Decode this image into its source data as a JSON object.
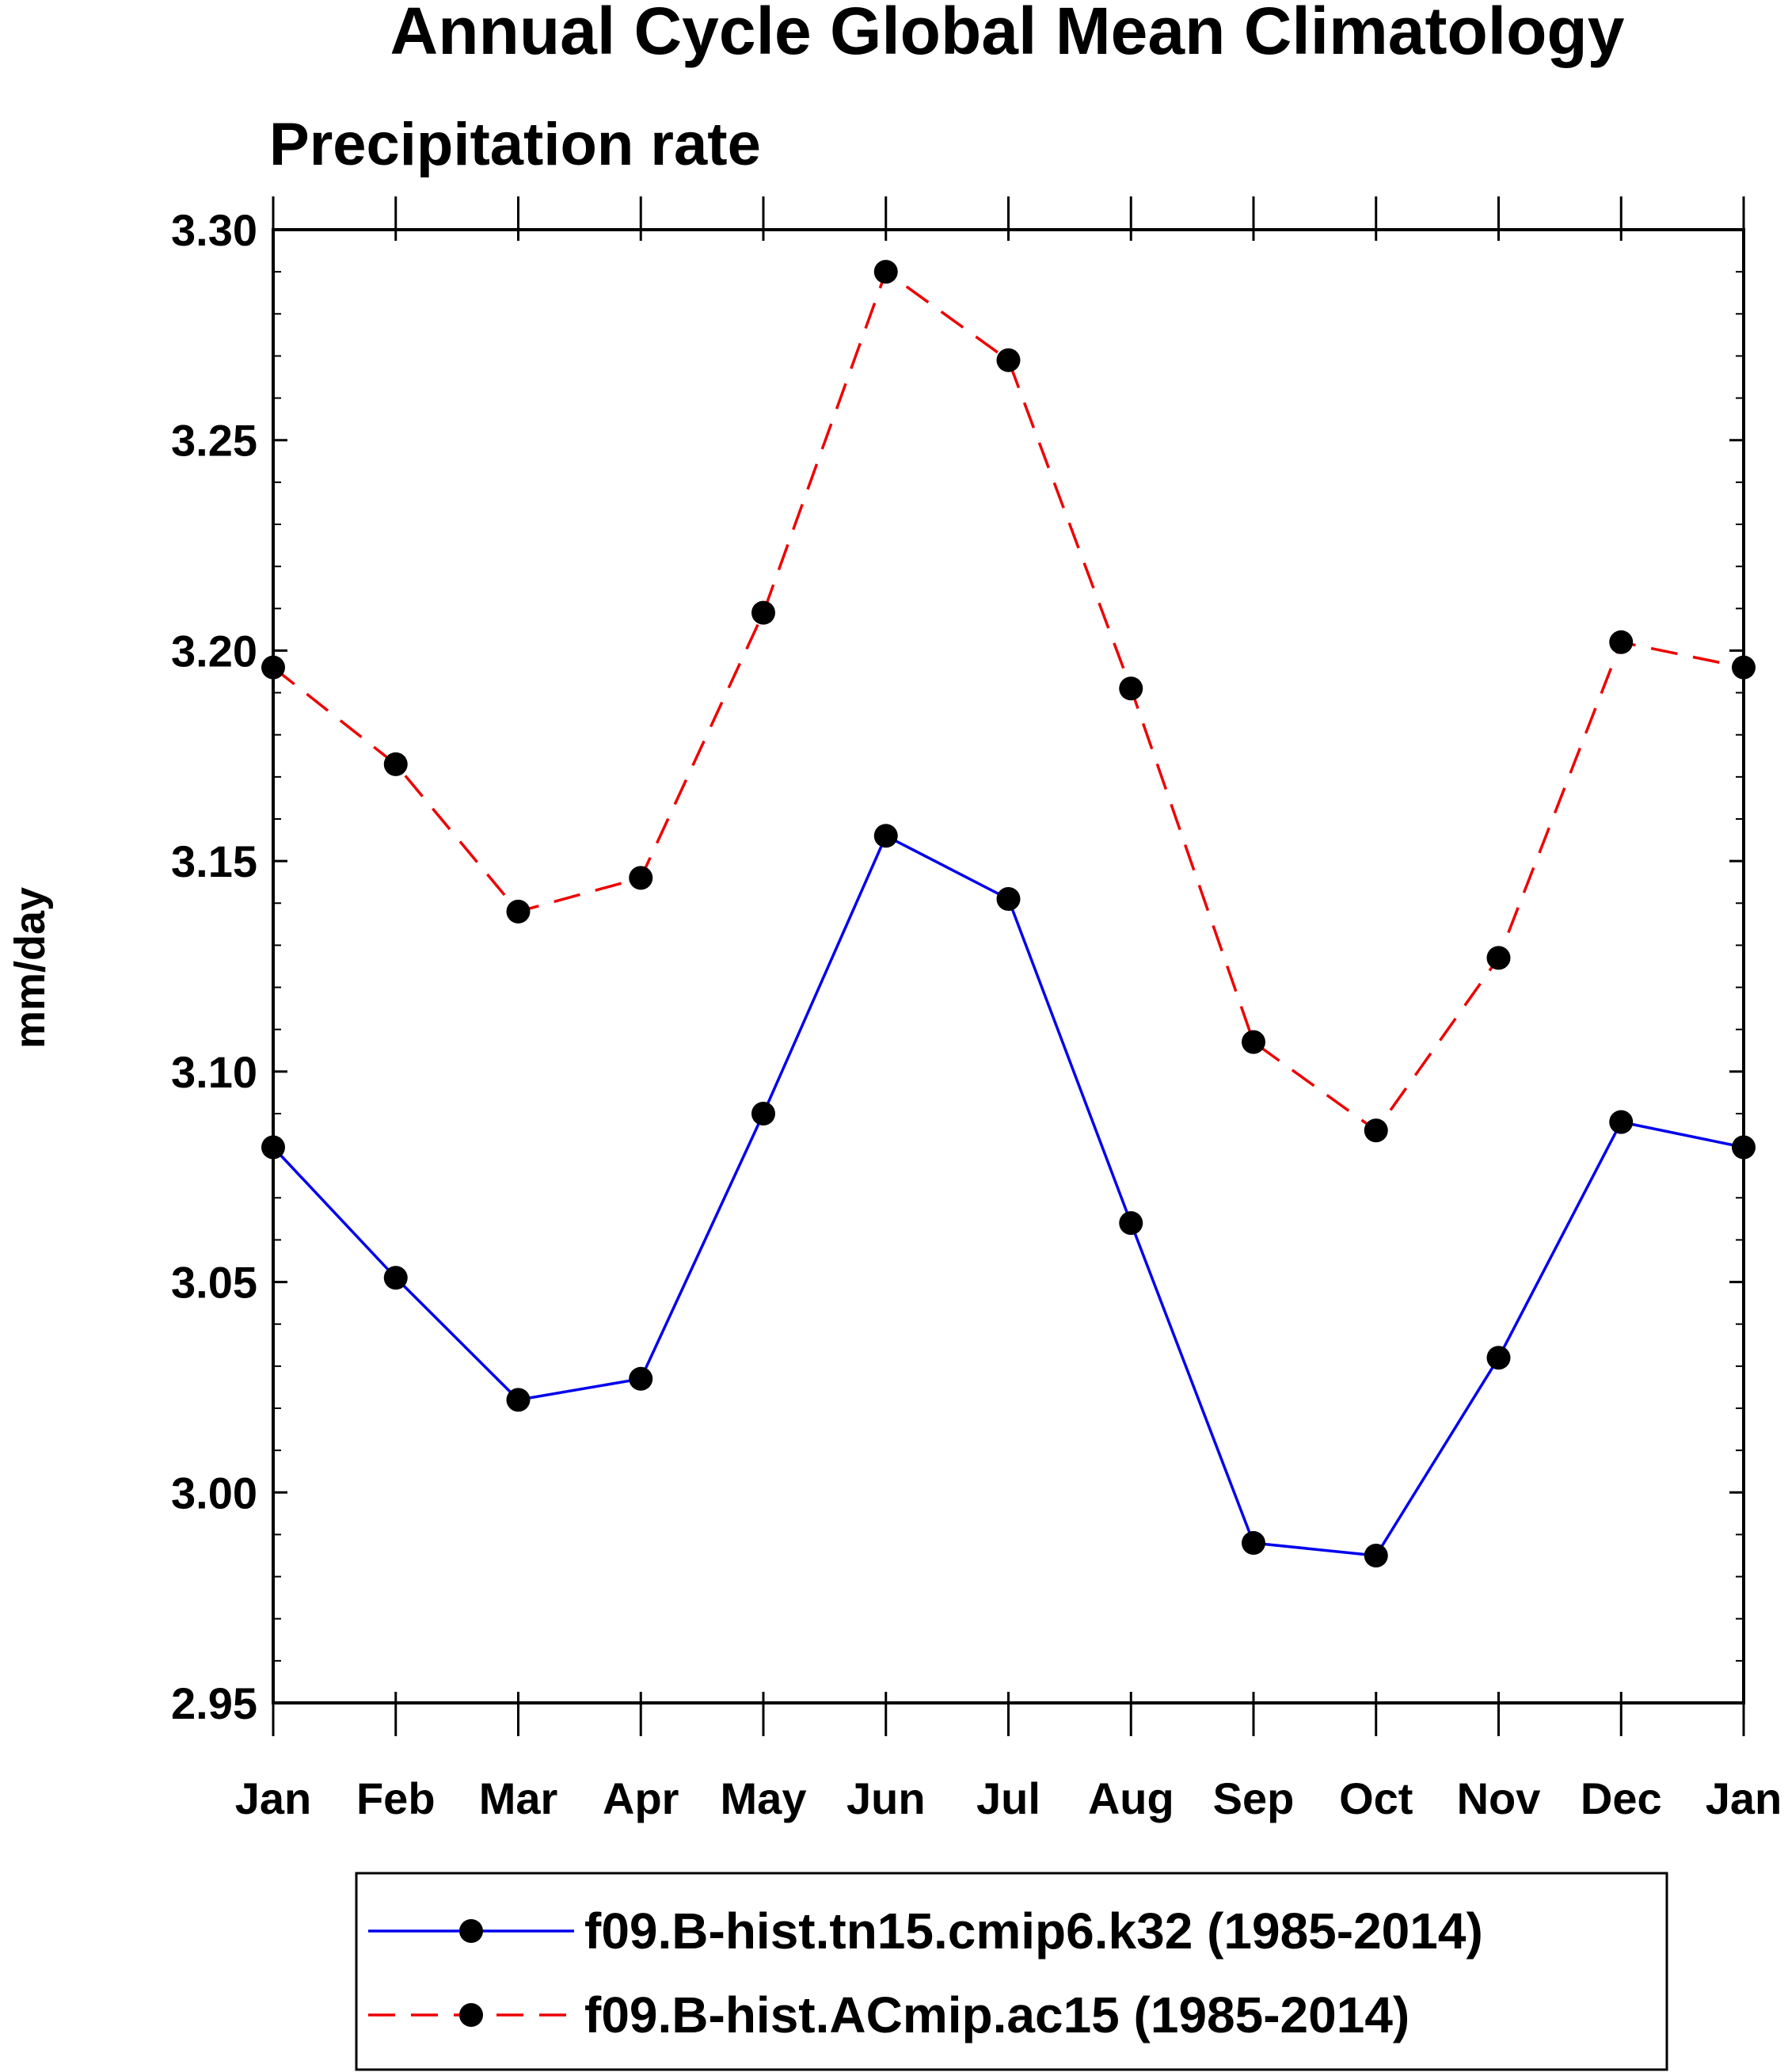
{
  "chart_data": {
    "type": "line",
    "title": "Annual Cycle Global Mean Climatology",
    "subtitle": "Precipitation rate",
    "xlabel": "",
    "ylabel": "mm/day",
    "categories": [
      "Jan",
      "Feb",
      "Mar",
      "Apr",
      "May",
      "Jun",
      "Jul",
      "Aug",
      "Sep",
      "Oct",
      "Nov",
      "Dec",
      "Jan"
    ],
    "yticks": [
      "2.95",
      "3.00",
      "3.05",
      "3.10",
      "3.15",
      "3.20",
      "3.25",
      "3.30"
    ],
    "ylim": [
      2.95,
      3.3
    ],
    "grid": false,
    "legend_position": "bottom",
    "series": [
      {
        "name": "f09.B-hist.tn15.cmip6.k32 (1985-2014)",
        "color": "#0000ee",
        "line_style": "solid",
        "marker": "filled-circle",
        "values": [
          3.082,
          3.051,
          3.022,
          3.027,
          3.09,
          3.156,
          3.141,
          3.064,
          2.988,
          2.985,
          3.032,
          3.088,
          3.082
        ]
      },
      {
        "name": "f09.B-hist.ACmip.ac15 (1985-2014)",
        "color": "#ee0000",
        "line_style": "dashed",
        "marker": "filled-circle",
        "values": [
          3.196,
          3.173,
          3.138,
          3.146,
          3.209,
          3.29,
          3.269,
          3.191,
          3.107,
          3.086,
          3.127,
          3.202,
          3.196
        ]
      }
    ]
  }
}
